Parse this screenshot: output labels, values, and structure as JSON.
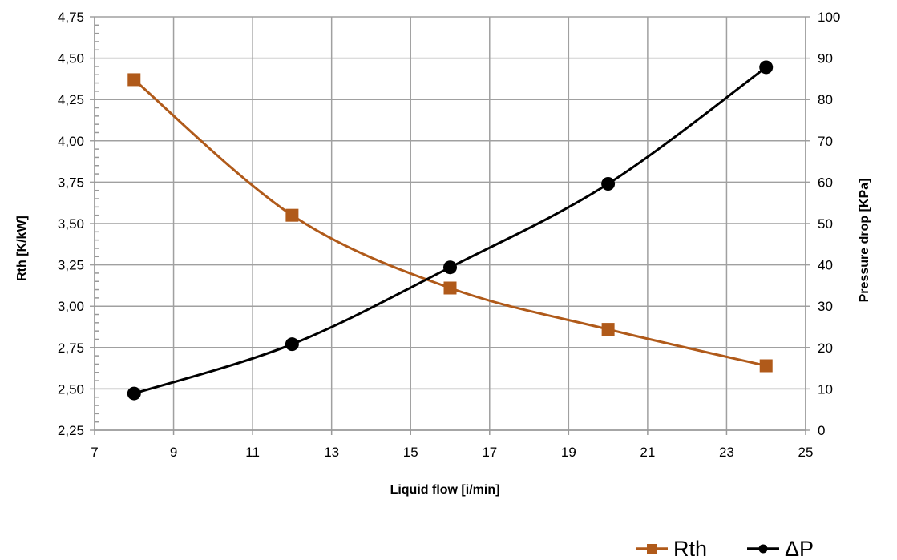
{
  "chart_data": {
    "type": "line",
    "title": "",
    "xlabel": "Liquid flow [i/min]",
    "ylabel": "Rth [K/kW]",
    "y2label": "Pressure drop [KPa]",
    "xlim": [
      7,
      25
    ],
    "ylim": [
      2.25,
      4.75
    ],
    "y2lim": [
      0,
      100
    ],
    "xticks": [
      "7",
      "9",
      "11",
      "13",
      "15",
      "17",
      "19",
      "21",
      "23",
      "25"
    ],
    "yticks": [
      "2,25",
      "2,50",
      "2,75",
      "3,00",
      "3,25",
      "3,50",
      "3,75",
      "4,00",
      "4,25",
      "4,50",
      "4,75"
    ],
    "y2ticks": [
      "0",
      "10",
      "20",
      "30",
      "40",
      "50",
      "60",
      "70",
      "80",
      "90",
      "100"
    ],
    "grid": true,
    "legend_position": "bottom-right",
    "series": [
      {
        "name": "Rth",
        "axis": "left",
        "marker": "square",
        "color": "#b05a1a",
        "x": [
          8,
          12,
          16,
          20,
          24
        ],
        "values": [
          4.37,
          3.55,
          3.11,
          2.86,
          2.64
        ]
      },
      {
        "name": "ΔP",
        "axis": "right",
        "marker": "circle",
        "color": "#000000",
        "x": [
          8,
          12,
          16,
          20,
          24
        ],
        "values": [
          8.9,
          20.8,
          39.4,
          59.6,
          87.8
        ]
      }
    ]
  }
}
